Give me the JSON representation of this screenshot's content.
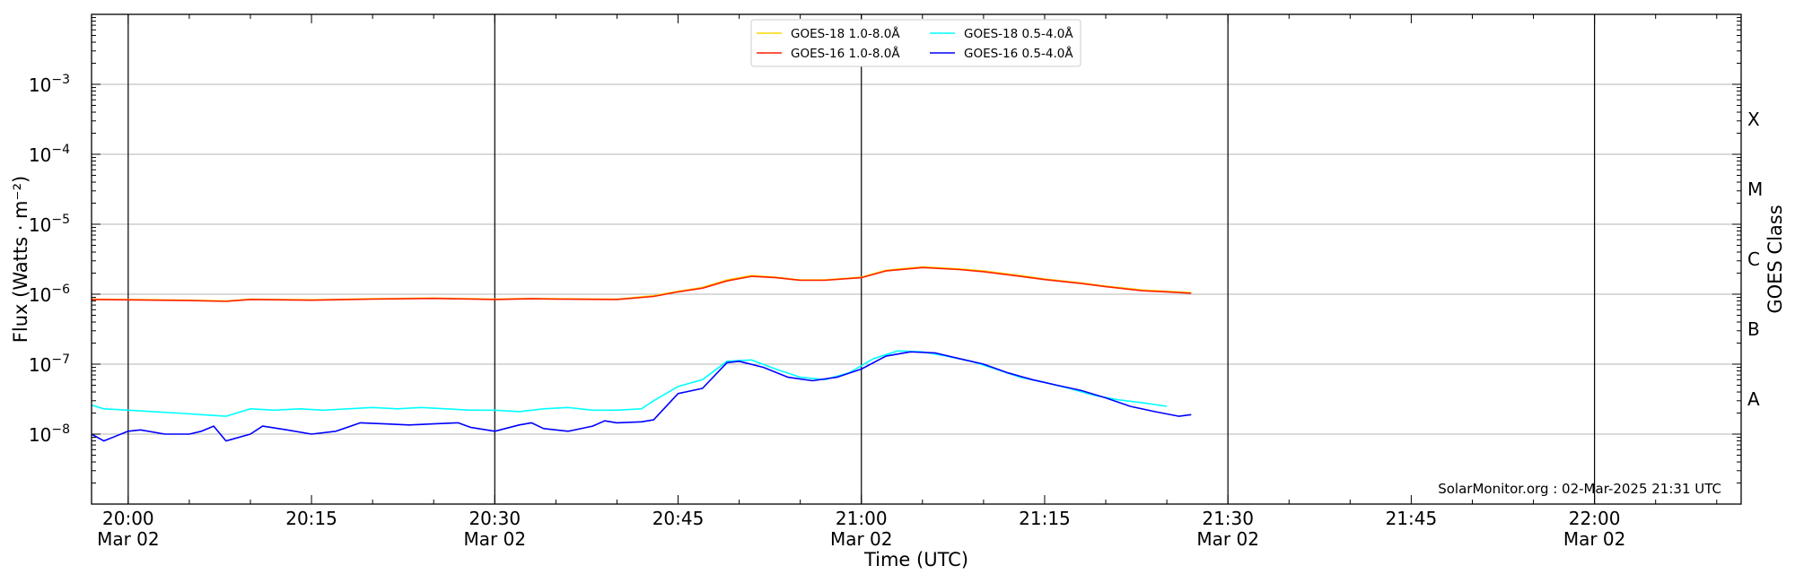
{
  "chart_data": {
    "type": "line",
    "xlabel": "Time (UTC)",
    "ylabel": "Flux (Watts · m⁻²)",
    "ylabel_right": "GOES Class",
    "yscale": "log",
    "ylim": [
      1e-09,
      0.01
    ],
    "xlim": [
      "19:57",
      "22:12"
    ],
    "grid": "horizontal at decades",
    "legend_position": "top-center",
    "credit": "SolarMonitor.org : 02-Mar-2025 21:31 UTC",
    "x_ticks": [
      {
        "time": "20:00",
        "label": "20:00",
        "date": "Mar 02",
        "vline": true
      },
      {
        "time": "20:15",
        "label": "20:15",
        "date": "",
        "vline": false
      },
      {
        "time": "20:30",
        "label": "20:30",
        "date": "Mar 02",
        "vline": true
      },
      {
        "time": "20:45",
        "label": "20:45",
        "date": "",
        "vline": false
      },
      {
        "time": "21:00",
        "label": "21:00",
        "date": "Mar 02",
        "vline": true
      },
      {
        "time": "21:15",
        "label": "21:15",
        "date": "",
        "vline": false
      },
      {
        "time": "21:30",
        "label": "21:30",
        "date": "Mar 02",
        "vline": true
      },
      {
        "time": "21:45",
        "label": "21:45",
        "date": "",
        "vline": false
      },
      {
        "time": "22:00",
        "label": "22:00",
        "date": "Mar 02",
        "vline": true
      }
    ],
    "y_ticks": [
      {
        "value": 1e-08,
        "base": "10",
        "exp": "−8"
      },
      {
        "value": 1e-07,
        "base": "10",
        "exp": "−7"
      },
      {
        "value": 1e-06,
        "base": "10",
        "exp": "−6"
      },
      {
        "value": 1e-05,
        "base": "10",
        "exp": "−5"
      },
      {
        "value": 0.0001,
        "base": "10",
        "exp": "−4"
      },
      {
        "value": 0.001,
        "base": "10",
        "exp": "−3"
      }
    ],
    "goes_classes": [
      {
        "label": "A",
        "value": 3.16e-08
      },
      {
        "label": "B",
        "value": 3.16e-07
      },
      {
        "label": "C",
        "value": 3.16e-06
      },
      {
        "label": "M",
        "value": 3.16e-05
      },
      {
        "label": "X",
        "value": 0.000316
      }
    ],
    "series": [
      {
        "name": "GOES-18 1.0-8.0Å",
        "color": "#ffd700",
        "x": [
          "19:57",
          "20:00",
          "20:05",
          "20:08",
          "20:10",
          "20:15",
          "20:20",
          "20:25",
          "20:30",
          "20:33",
          "20:35",
          "20:40",
          "20:43",
          "20:45",
          "20:47",
          "20:49",
          "20:51",
          "20:53",
          "20:55",
          "20:57",
          "21:00",
          "21:02",
          "21:05",
          "21:08",
          "21:10",
          "21:13",
          "21:15",
          "21:18",
          "21:20",
          "21:23",
          "21:25",
          "21:27"
        ],
        "y": [
          8.5e-07,
          8.4e-07,
          8.2e-07,
          8e-07,
          8.5e-07,
          8.3e-07,
          8.6e-07,
          8.8e-07,
          8.5e-07,
          8.7e-07,
          8.6e-07,
          8.5e-07,
          9.5e-07,
          1.1e-06,
          1.25e-06,
          1.6e-06,
          1.85e-06,
          1.75e-06,
          1.6e-06,
          1.6e-06,
          1.75e-06,
          2.2e-06,
          2.45e-06,
          2.3e-06,
          2.15e-06,
          1.85e-06,
          1.65e-06,
          1.45e-06,
          1.3e-06,
          1.15e-06,
          1.1e-06,
          1.05e-06
        ]
      },
      {
        "name": "GOES-16 1.0-8.0Å",
        "color": "#ff2000",
        "x": [
          "19:57",
          "20:00",
          "20:05",
          "20:08",
          "20:10",
          "20:15",
          "20:20",
          "20:25",
          "20:30",
          "20:33",
          "20:35",
          "20:40",
          "20:43",
          "20:45",
          "20:47",
          "20:49",
          "20:51",
          "20:53",
          "20:55",
          "20:57",
          "21:00",
          "21:02",
          "21:05",
          "21:08",
          "21:10",
          "21:13",
          "21:15",
          "21:18",
          "21:20",
          "21:23",
          "21:25",
          "21:27"
        ],
        "y": [
          8.4e-07,
          8.3e-07,
          8.1e-07,
          7.9e-07,
          8.4e-07,
          8.2e-07,
          8.5e-07,
          8.7e-07,
          8.4e-07,
          8.6e-07,
          8.5e-07,
          8.4e-07,
          9.3e-07,
          1.08e-06,
          1.22e-06,
          1.55e-06,
          1.8e-06,
          1.72e-06,
          1.58e-06,
          1.58e-06,
          1.72e-06,
          2.15e-06,
          2.4e-06,
          2.25e-06,
          2.1e-06,
          1.8e-06,
          1.62e-06,
          1.42e-06,
          1.28e-06,
          1.12e-06,
          1.08e-06,
          1.03e-06
        ]
      },
      {
        "name": "GOES-18 0.5-4.0Å",
        "color": "#00ffff",
        "x": [
          "19:57",
          "19:58",
          "20:00",
          "20:02",
          "20:04",
          "20:06",
          "20:08",
          "20:10",
          "20:12",
          "20:14",
          "20:16",
          "20:18",
          "20:20",
          "20:22",
          "20:24",
          "20:26",
          "20:28",
          "20:30",
          "20:32",
          "20:34",
          "20:36",
          "20:38",
          "20:40",
          "20:42",
          "20:43",
          "20:45",
          "20:47",
          "20:49",
          "20:51",
          "20:53",
          "20:55",
          "20:57",
          "20:59",
          "21:01",
          "21:03",
          "21:05",
          "21:07",
          "21:09",
          "21:11",
          "21:13",
          "21:15",
          "21:17",
          "21:19",
          "21:21",
          "21:23",
          "21:25"
        ],
        "y": [
          2.6e-08,
          2.3e-08,
          2.2e-08,
          2.1e-08,
          2e-08,
          1.9e-08,
          1.8e-08,
          2.3e-08,
          2.2e-08,
          2.3e-08,
          2.2e-08,
          2.3e-08,
          2.4e-08,
          2.3e-08,
          2.4e-08,
          2.3e-08,
          2.2e-08,
          2.2e-08,
          2.1e-08,
          2.3e-08,
          2.4e-08,
          2.2e-08,
          2.2e-08,
          2.3e-08,
          3e-08,
          4.8e-08,
          6e-08,
          1.1e-07,
          1.15e-07,
          8.5e-08,
          6.5e-08,
          6e-08,
          7.5e-08,
          1.2e-07,
          1.55e-07,
          1.5e-07,
          1.3e-07,
          1.1e-07,
          8.5e-08,
          6.5e-08,
          5.5e-08,
          4.5e-08,
          3.6e-08,
          3.1e-08,
          2.8e-08,
          2.5e-08
        ]
      },
      {
        "name": "GOES-16 0.5-4.0Å",
        "color": "#0000ff",
        "x": [
          "19:57",
          "19:58",
          "20:00",
          "20:01",
          "20:03",
          "20:05",
          "20:06",
          "20:07",
          "20:08",
          "20:10",
          "20:11",
          "20:13",
          "20:15",
          "20:17",
          "20:19",
          "20:21",
          "20:23",
          "20:25",
          "20:27",
          "20:28",
          "20:30",
          "20:32",
          "20:33",
          "20:34",
          "20:36",
          "20:38",
          "20:39",
          "20:40",
          "20:42",
          "20:43",
          "20:45",
          "20:47",
          "20:49",
          "20:50",
          "20:52",
          "20:54",
          "20:56",
          "20:58",
          "21:00",
          "21:02",
          "21:04",
          "21:06",
          "21:08",
          "21:10",
          "21:12",
          "21:14",
          "21:16",
          "21:18",
          "21:20",
          "21:22",
          "21:24",
          "21:26",
          "21:27"
        ],
        "y": [
          1e-08,
          8e-09,
          1.1e-08,
          1.15e-08,
          1e-08,
          1e-08,
          1.1e-08,
          1.3e-08,
          8e-09,
          1e-08,
          1.3e-08,
          1.15e-08,
          1e-08,
          1.1e-08,
          1.45e-08,
          1.4e-08,
          1.35e-08,
          1.4e-08,
          1.45e-08,
          1.25e-08,
          1.1e-08,
          1.35e-08,
          1.45e-08,
          1.2e-08,
          1.1e-08,
          1.3e-08,
          1.55e-08,
          1.45e-08,
          1.5e-08,
          1.6e-08,
          3.8e-08,
          4.5e-08,
          1.05e-07,
          1.1e-07,
          9e-08,
          6.5e-08,
          5.8e-08,
          6.5e-08,
          8.5e-08,
          1.3e-07,
          1.5e-07,
          1.45e-07,
          1.2e-07,
          1e-07,
          7.5e-08,
          6e-08,
          5e-08,
          4.2e-08,
          3.3e-08,
          2.5e-08,
          2.1e-08,
          1.8e-08,
          1.9e-08
        ]
      }
    ]
  }
}
